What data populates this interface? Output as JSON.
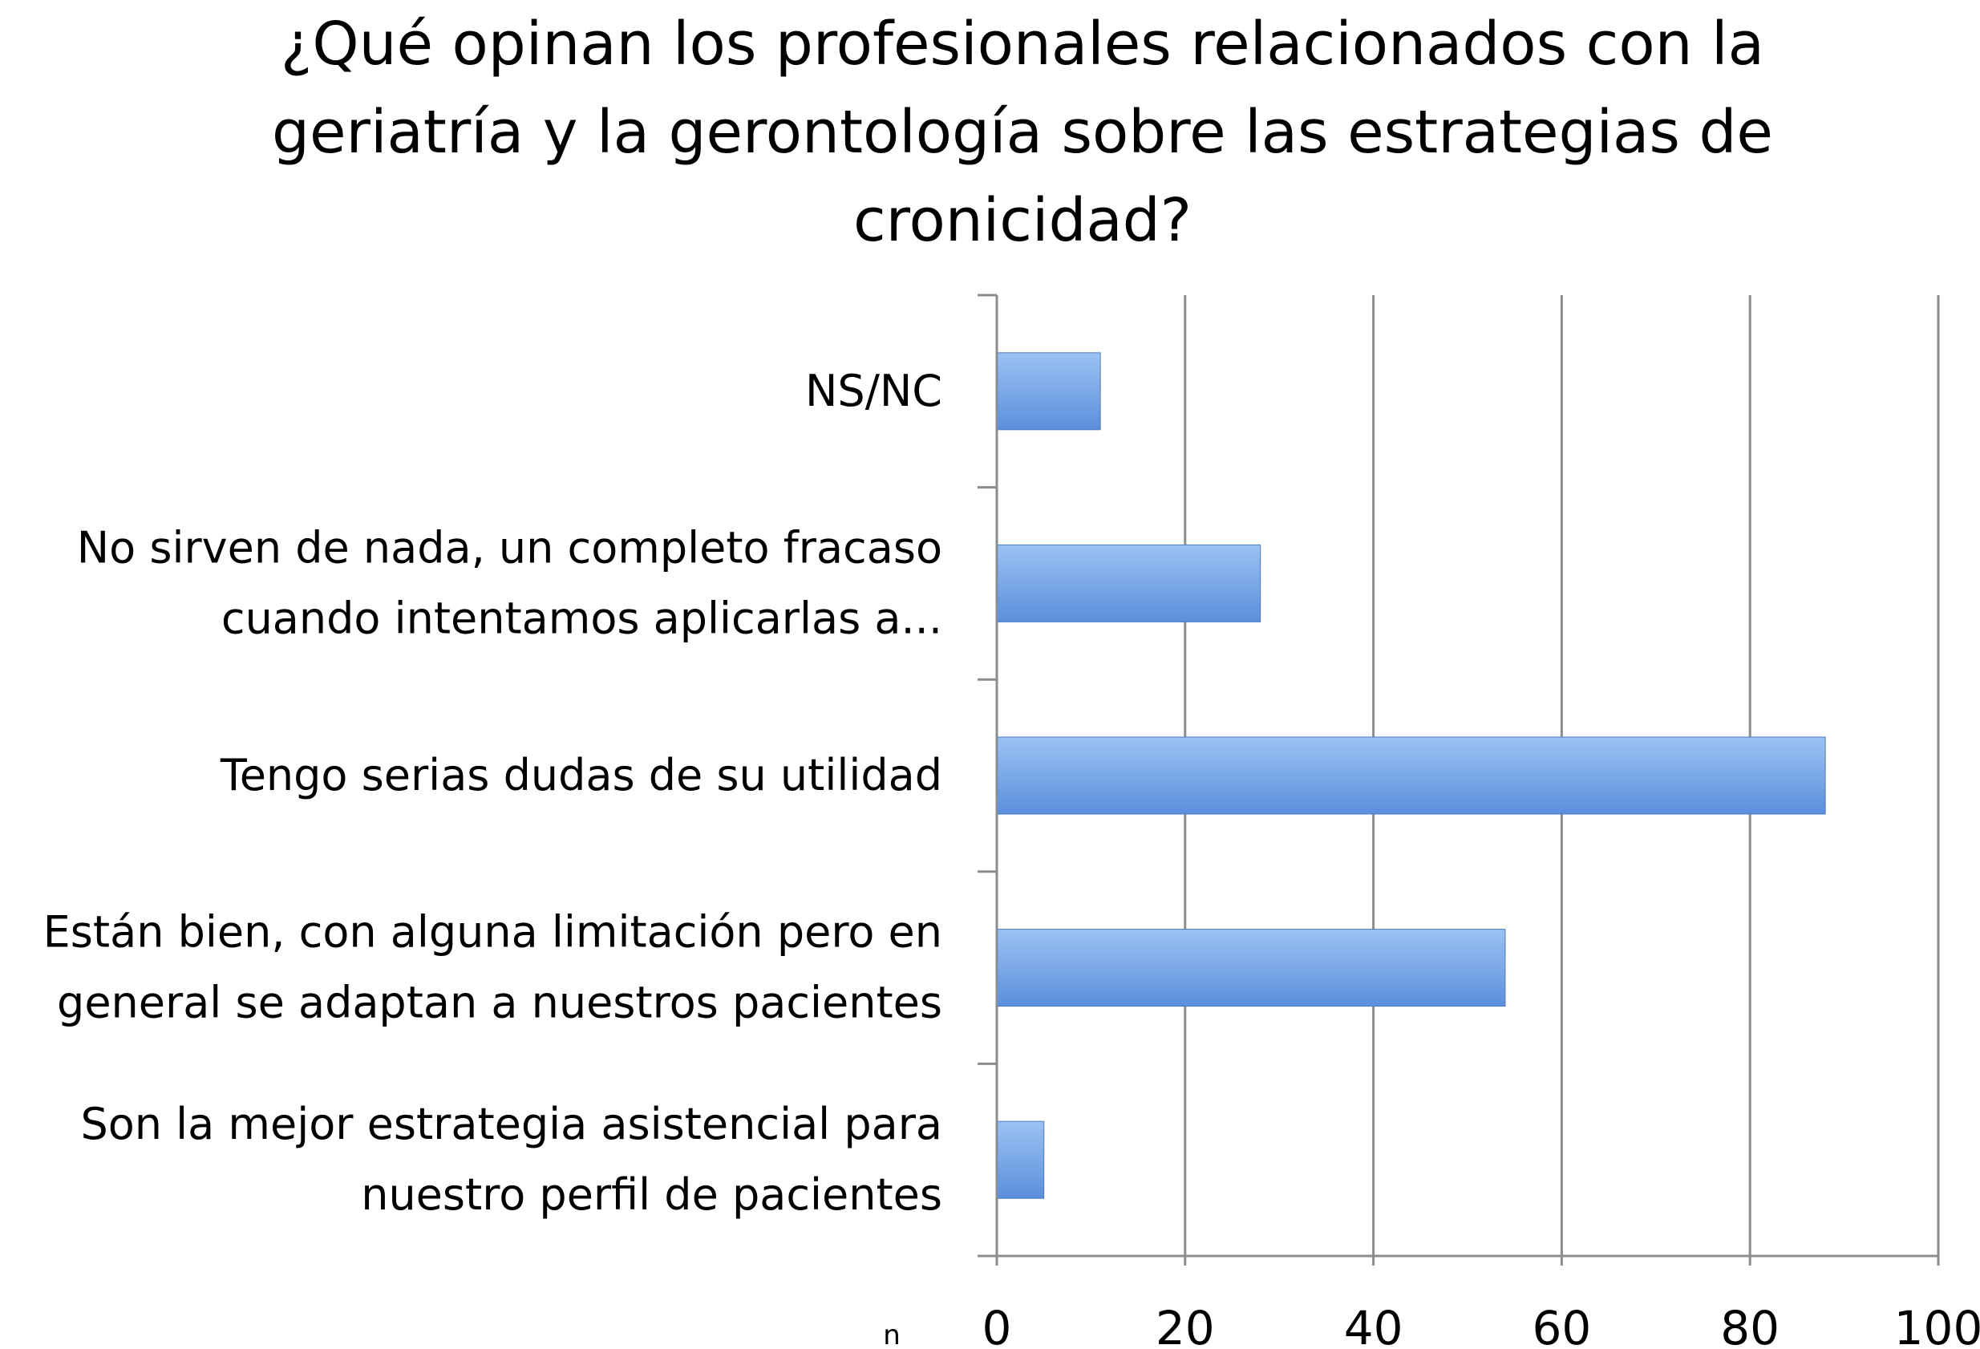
{
  "chart_data": {
    "type": "bar",
    "orientation": "horizontal",
    "title_lines": [
      "¿Qué opinan los profesionales relacionados con la",
      "geriatría y la gerontología sobre las estrategias de",
      "cronicidad?"
    ],
    "categories": [
      [
        "NS/NC"
      ],
      [
        "No sirven de nada, un completo fracaso",
        "cuando intentamos aplicarlas a..."
      ],
      [
        "Tengo serias dudas de su utilidad"
      ],
      [
        "Están bien, con alguna limitación pero en",
        "general se adaptan a nuestros pacientes"
      ],
      [
        "Son la mejor estrategia asistencial para",
        "nuestro perfil de pacientes"
      ]
    ],
    "values": [
      11,
      28,
      88,
      54,
      5
    ],
    "xlabel": "n",
    "xlim": [
      0,
      100
    ],
    "xticks": [
      "0",
      "20",
      "40",
      "60",
      "80",
      "100"
    ],
    "grid": true,
    "legend": "none",
    "bar_color": "#5b8fdc",
    "bar_color_light": "#9cc2f4",
    "grid_color": "#8c8c8c"
  }
}
